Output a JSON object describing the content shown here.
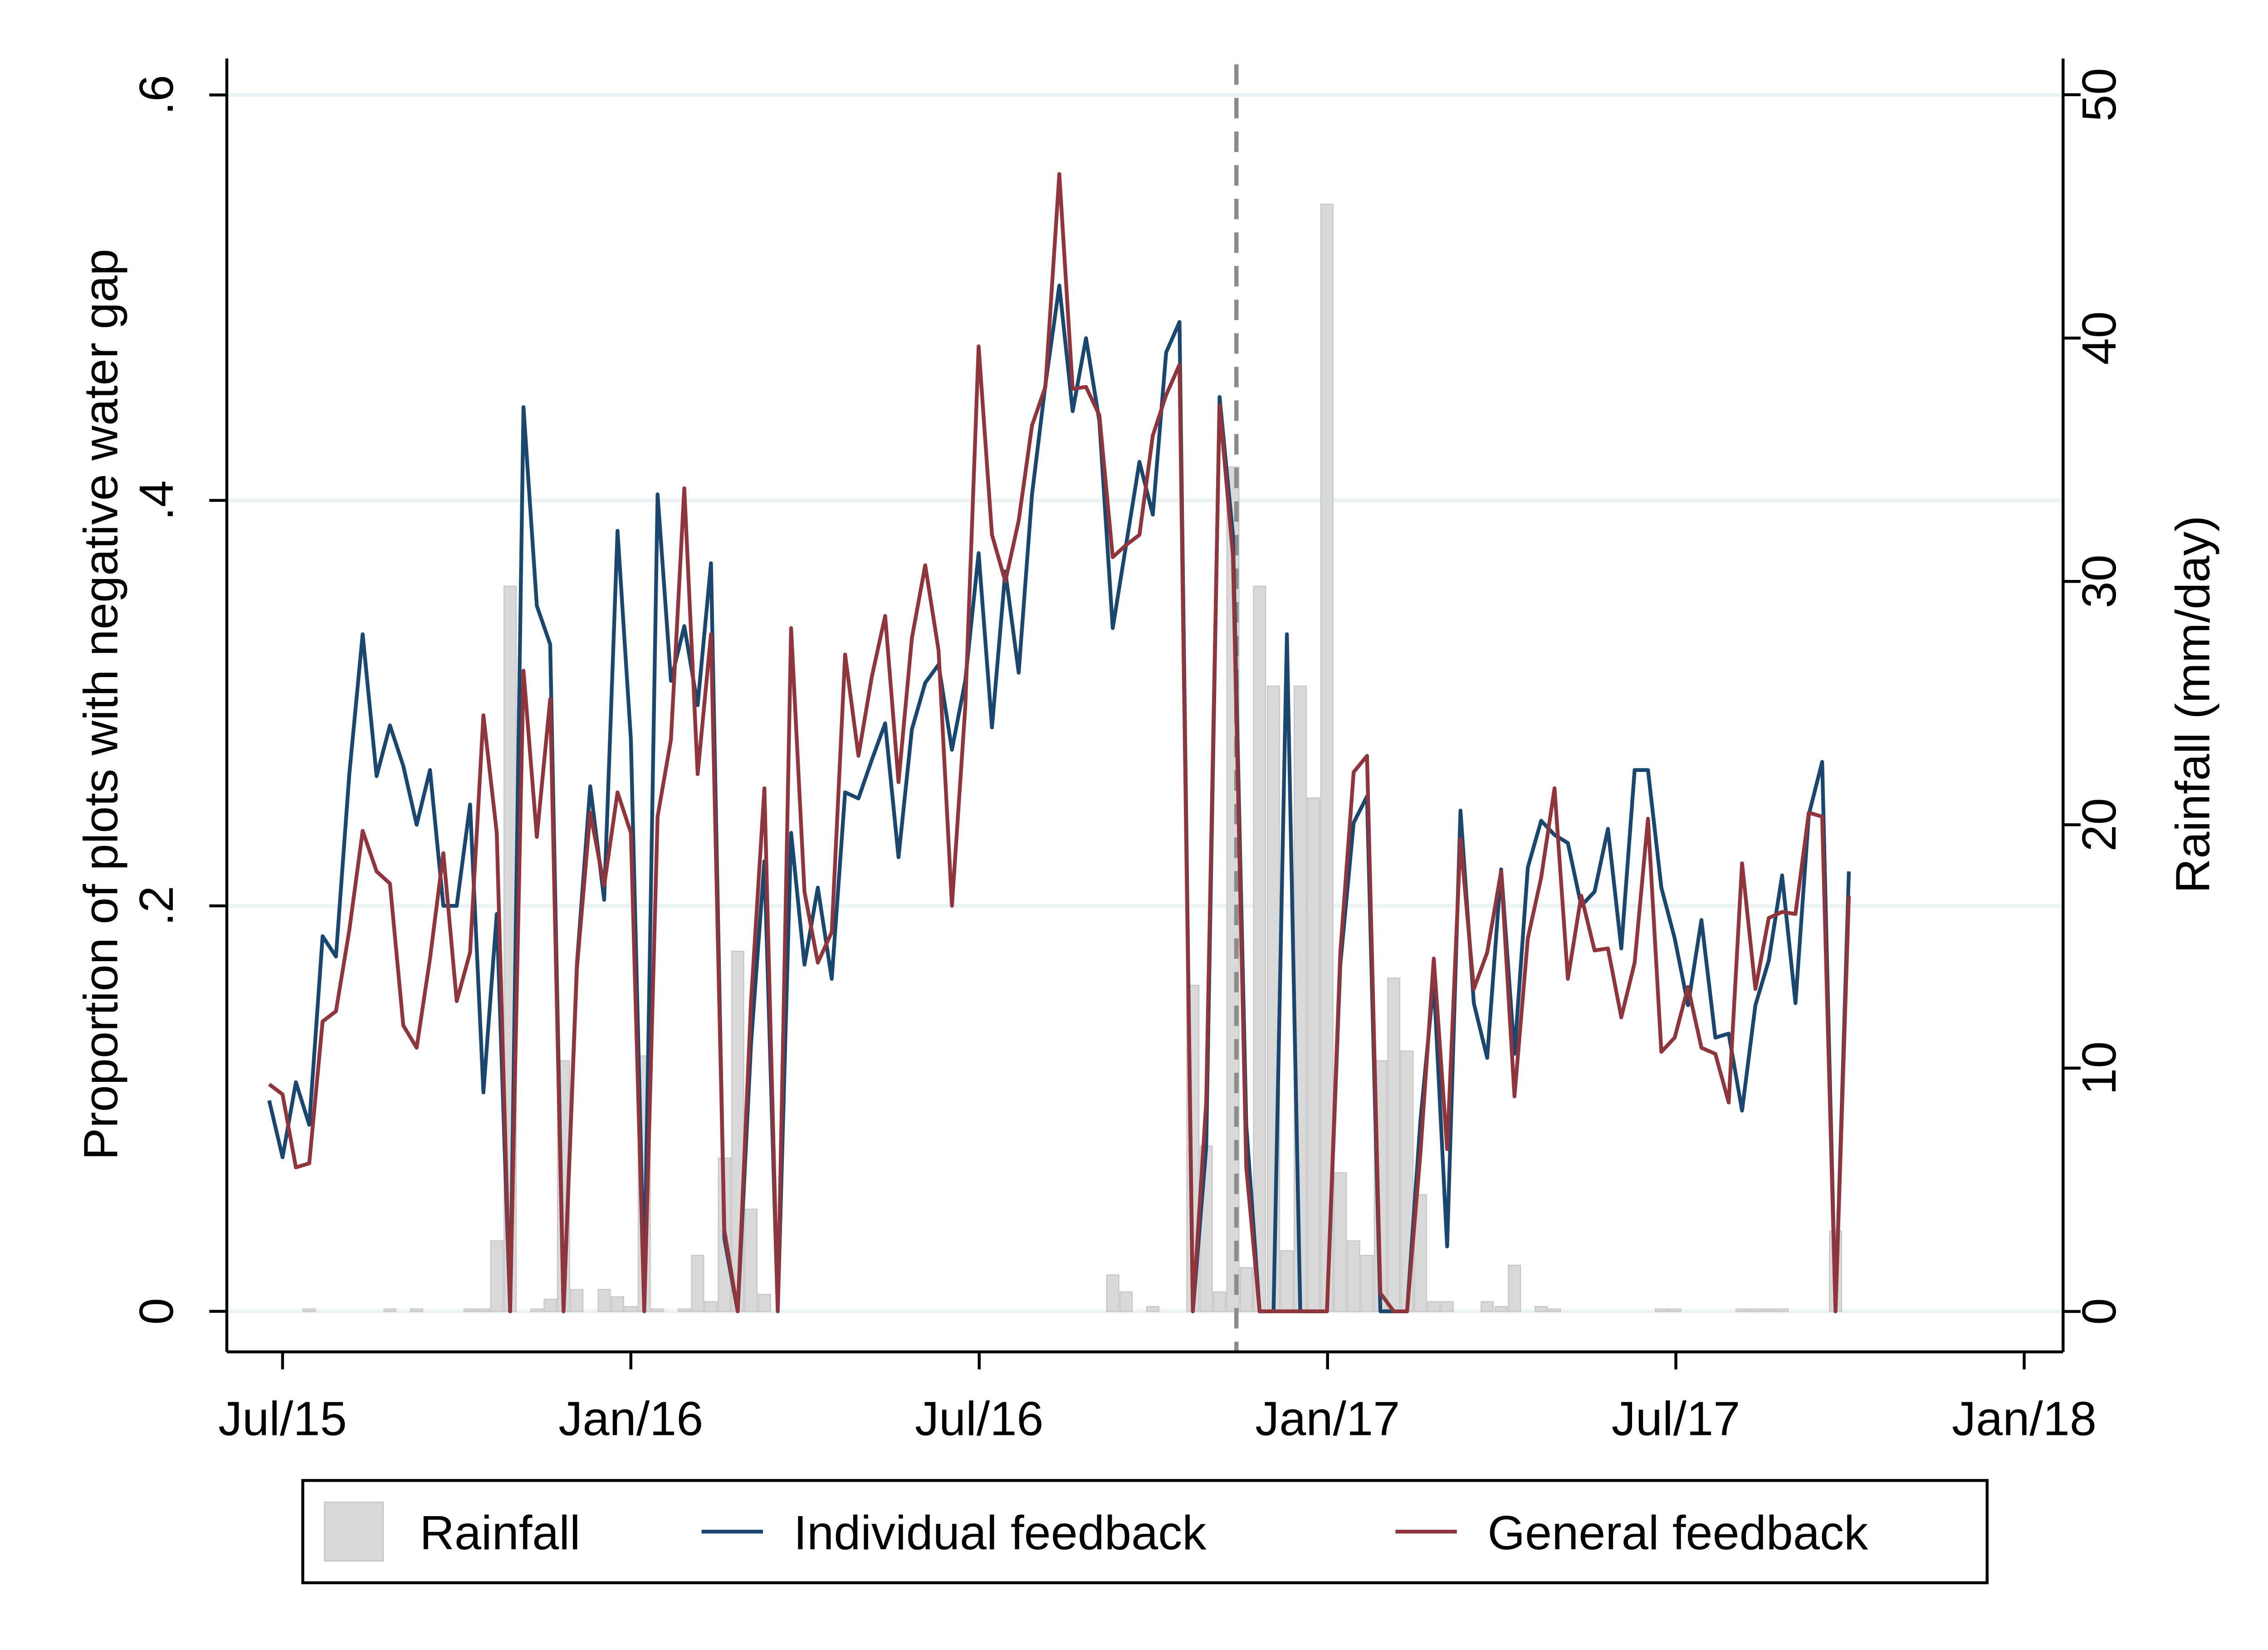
{
  "chart_data": {
    "type": "line",
    "y_label": "Proportion of plots with negative water gap",
    "y2_label": "Rainfall (mm/day)",
    "grid": true,
    "legend": "bottom",
    "vline": 16.43,
    "xlim": [
      -0.96,
      30.67
    ],
    "xticks": [
      {
        "value": 0,
        "label": "Jul/15"
      },
      {
        "value": 6,
        "label": "Jan/16"
      },
      {
        "value": 12,
        "label": "Jul/16"
      },
      {
        "value": 18,
        "label": "Jan/17"
      },
      {
        "value": 24,
        "label": "Jul/17"
      },
      {
        "value": 30,
        "label": "Jan/18"
      }
    ],
    "ylim": [
      -0.02,
      0.618
    ],
    "yticks": [
      0,
      {
        "value": 0.2,
        "label": ".2"
      },
      {
        "value": 0.4,
        "label": ".4"
      },
      {
        "value": 0.6,
        "label": ".6"
      }
    ],
    "y2lim": [
      -1.66,
      51.49
    ],
    "y2ticks": [
      0,
      10,
      20,
      30,
      40,
      50
    ],
    "x": [
      -0.23,
      0.0,
      0.23,
      0.46,
      0.69,
      0.92,
      1.15,
      1.38,
      1.62,
      1.85,
      2.08,
      2.31,
      2.54,
      2.77,
      3.0,
      3.23,
      3.46,
      3.69,
      3.92,
      4.15,
      4.38,
      4.61,
      4.84,
      5.07,
      5.3,
      5.54,
      5.77,
      6.0,
      6.23,
      6.46,
      6.69,
      6.92,
      7.15,
      7.38,
      7.61,
      7.84,
      8.07,
      8.3,
      8.53,
      8.76,
      8.99,
      9.22,
      9.46,
      9.69,
      9.92,
      10.15,
      10.38,
      10.61,
      10.84,
      11.07,
      11.3,
      11.53,
      11.76,
      11.99,
      12.22,
      12.45,
      12.68,
      12.91,
      13.14,
      13.38,
      13.61,
      13.84,
      14.07,
      14.3,
      14.53,
      14.76,
      14.99,
      15.22,
      15.45,
      15.68,
      15.91,
      16.14,
      16.37,
      16.6,
      16.83,
      17.07,
      17.3,
      17.53,
      17.76,
      17.99,
      18.22,
      18.45,
      18.68,
      18.91,
      19.14,
      19.37,
      19.6,
      19.83,
      20.06,
      20.29,
      20.52,
      20.75,
      20.99,
      21.22,
      21.45,
      21.68,
      21.91,
      22.14,
      22.37,
      22.6,
      22.83,
      23.06,
      23.29,
      23.52,
      23.75,
      23.98,
      24.21,
      24.44,
      24.68,
      24.91,
      25.14,
      25.37,
      25.6,
      25.83,
      26.06,
      26.29,
      26.52,
      26.75,
      26.98
    ],
    "series": [
      {
        "name": "Rainfall",
        "type": "bar",
        "axis": "y2",
        "color": "#d9d9d9",
        "values": [
          0,
          0,
          0,
          0.1,
          0,
          0,
          0,
          0,
          0,
          0.1,
          0,
          0.1,
          0,
          0,
          0,
          0.1,
          0.1,
          2.9,
          29.8,
          0,
          0.1,
          0.5,
          10.3,
          0.9,
          0,
          0.9,
          0.6,
          0.2,
          10.5,
          0.1,
          0,
          0.1,
          2.3,
          0.4,
          6.3,
          14.8,
          4.2,
          0.7,
          0,
          0,
          0,
          0,
          0,
          0,
          0,
          0,
          0,
          0,
          0,
          0,
          0,
          0,
          0,
          0,
          0,
          0,
          0,
          0,
          0,
          0,
          0,
          0,
          0,
          1.5,
          0.8,
          0,
          0.2,
          0,
          0,
          13.4,
          6.8,
          0.8,
          34.7,
          1.8,
          29.8,
          25.7,
          2.5,
          25.7,
          21.1,
          45.5,
          5.7,
          2.9,
          2.3,
          10.3,
          13.7,
          10.7,
          4.8,
          0.4,
          0.4,
          0,
          0,
          0.4,
          0.2,
          1.9,
          0,
          0.2,
          0.1,
          0,
          0,
          0,
          0,
          0,
          0,
          0,
          0.1,
          0.1,
          0,
          0,
          0,
          0,
          0.1,
          0.1,
          0.1,
          0.1,
          0,
          0,
          0,
          3.3,
          0
        ]
      },
      {
        "name": "Individual feedback",
        "color": "#1a476f",
        "values": [
          0.104,
          0.076,
          0.113,
          0.092,
          0.185,
          0.175,
          0.265,
          0.334,
          0.264,
          0.289,
          0.269,
          0.24,
          0.267,
          0.2,
          0.2,
          0.25,
          0.108,
          0.196,
          0,
          0.446,
          0.348,
          0.329,
          0,
          0.171,
          0.259,
          0.203,
          0.385,
          0.282,
          0.012,
          0.403,
          0.311,
          0.338,
          0.299,
          0.369,
          0.036,
          0,
          0.132,
          0.222,
          0,
          0.236,
          0.171,
          0.209,
          0.164,
          0.256,
          0.253,
          0.272,
          0.29,
          0.224,
          0.287,
          0.31,
          0.319,
          0.277,
          0.311,
          0.374,
          0.288,
          0.365,
          0.315,
          0.403,
          0.457,
          0.506,
          0.444,
          0.48,
          0.439,
          0.337,
          0.378,
          0.419,
          0.393,
          0.473,
          0.488,
          0,
          0.081,
          0.451,
          0.383,
          0.092,
          0,
          0,
          0.334,
          0,
          0,
          0,
          0.171,
          0.241,
          0.254,
          0,
          0,
          0,
          0.094,
          0.163,
          0.032,
          0.247,
          0.152,
          0.125,
          0.218,
          0.127,
          0.219,
          0.242,
          0.235,
          0.231,
          0.2,
          0.207,
          0.238,
          0.179,
          0.267,
          0.267,
          0.209,
          0.184,
          0.151,
          0.193,
          0.135,
          0.137,
          0.099,
          0.151,
          0.173,
          0.215,
          0.152,
          0.245,
          0.271,
          0,
          0.217
        ]
      },
      {
        "name": "General feedback",
        "color": "#90353b",
        "values": [
          0.112,
          0.107,
          0.071,
          0.073,
          0.143,
          0.148,
          0.188,
          0.237,
          0.217,
          0.211,
          0.141,
          0.13,
          0.174,
          0.226,
          0.153,
          0.177,
          0.294,
          0.236,
          0,
          0.316,
          0.234,
          0.302,
          0,
          0.169,
          0.246,
          0.21,
          0.256,
          0.236,
          0,
          0.244,
          0.282,
          0.406,
          0.265,
          0.334,
          0.04,
          0,
          0.153,
          0.258,
          0,
          0.337,
          0.207,
          0.172,
          0.187,
          0.324,
          0.274,
          0.313,
          0.343,
          0.261,
          0.332,
          0.368,
          0.326,
          0.2,
          0.298,
          0.476,
          0.383,
          0.36,
          0.39,
          0.437,
          0.456,
          0.561,
          0.455,
          0.456,
          0.442,
          0.372,
          0.378,
          0.383,
          0.432,
          0.452,
          0.467,
          0,
          0.103,
          0.447,
          0.373,
          0.071,
          0,
          0,
          0,
          0,
          0,
          0,
          0.177,
          0.266,
          0.274,
          0.009,
          0,
          0,
          0.078,
          0.174,
          0.08,
          0.233,
          0.159,
          0.177,
          0.217,
          0.106,
          0.184,
          0.214,
          0.258,
          0.164,
          0.205,
          0.178,
          0.179,
          0.145,
          0.172,
          0.243,
          0.128,
          0.135,
          0.16,
          0.13,
          0.127,
          0.103,
          0.221,
          0.159,
          0.194,
          0.197,
          0.196,
          0.246,
          0.244,
          0,
          0.205
        ]
      }
    ]
  }
}
